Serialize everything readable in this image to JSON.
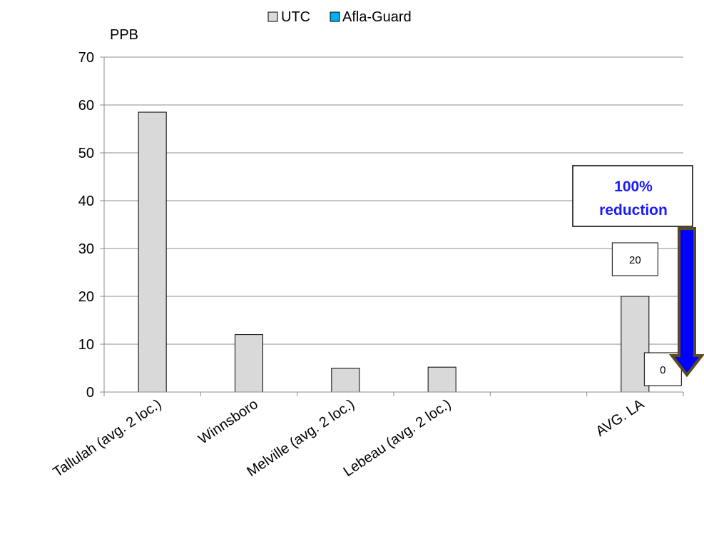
{
  "chart_data": {
    "type": "bar",
    "ylabel": "PPB",
    "ylim": [
      0,
      70
    ],
    "yticks": [
      0,
      10,
      20,
      30,
      40,
      50,
      60,
      70
    ],
    "grid": true,
    "legend_position": "top-center",
    "categories": [
      "Tallulah (avg. 2 loc.)",
      "Winnsboro",
      "Melville (avg. 2 loc.)",
      "Lebeau (avg. 2 loc.)",
      "",
      "AVG. LA"
    ],
    "series": [
      {
        "name": "UTC",
        "color": "#d9d9d9",
        "values": [
          58.5,
          12,
          5,
          5.2,
          null,
          20
        ]
      },
      {
        "name": "Afla-Guard",
        "color": "#00b0f0",
        "values": [
          null,
          null,
          null,
          null,
          null,
          0
        ]
      }
    ],
    "data_labels": [
      {
        "series": "UTC",
        "category_index": 5,
        "text": "20"
      },
      {
        "series": "Afla-Guard",
        "category_index": 5,
        "text": "0"
      }
    ],
    "annotation": {
      "line1": "100%",
      "line2": "reduction",
      "color": "#1a1aff",
      "arrow_color": "#0000ff",
      "arrow_border": "#5c4a1e"
    }
  }
}
